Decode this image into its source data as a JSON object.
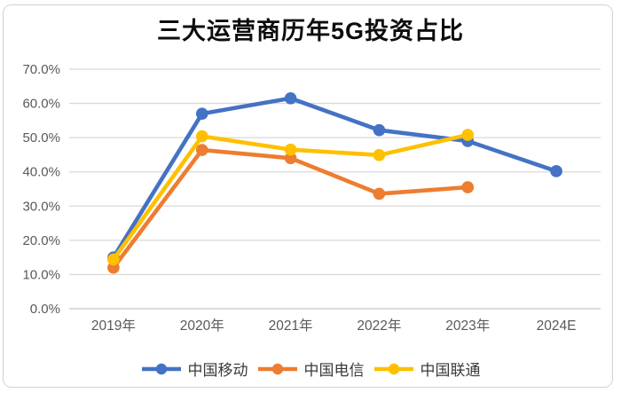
{
  "chart_data": {
    "type": "line",
    "title": "三大运营商历年5G投资占比",
    "categories": [
      "2019年",
      "2020年",
      "2021年",
      "2022年",
      "2023年",
      "2024E"
    ],
    "series": [
      {
        "id": "china-mobile",
        "name": "中国移动",
        "color": "#4472C4",
        "values": [
          15.0,
          57.0,
          61.5,
          52.2,
          49.0,
          40.2
        ]
      },
      {
        "id": "china-telecom",
        "name": "中国电信",
        "color": "#ED7D31",
        "values": [
          12.0,
          46.4,
          44.0,
          33.6,
          35.5,
          null
        ]
      },
      {
        "id": "china-unicom",
        "name": "中国联通",
        "color": "#FFC000",
        "values": [
          14.4,
          50.4,
          46.5,
          44.9,
          50.8,
          null
        ]
      }
    ],
    "y_ticks": [
      "0.0%",
      "10.0%",
      "20.0%",
      "30.0%",
      "40.0%",
      "50.0%",
      "60.0%",
      "70.0%"
    ],
    "ylim": [
      0,
      70
    ],
    "xlabel": "",
    "ylabel": "",
    "grid": "horizontal",
    "grid_color": "#d9d9d9",
    "baseline_color": "#c8c8c8",
    "axis_label_color": "#595959",
    "legend_position": "bottom"
  }
}
